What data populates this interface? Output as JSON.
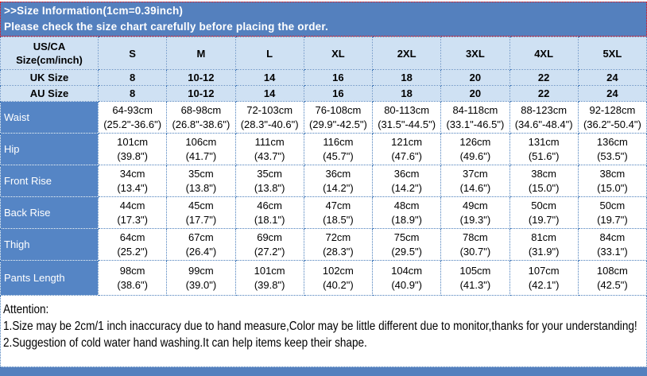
{
  "header": {
    "title": ">>Size Information(1cm=0.39inch)",
    "subtitle": "Please check the size chart carefully before placing the order."
  },
  "table": {
    "corner_label_line1": "US/CA",
    "corner_label_line2": "Size(cm/inch)",
    "sizes": [
      "S",
      "M",
      "L",
      "XL",
      "2XL",
      "3XL",
      "4XL",
      "5XL"
    ],
    "size_rows": [
      {
        "label": "UK Size",
        "values": [
          "8",
          "10-12",
          "14",
          "16",
          "18",
          "20",
          "22",
          "24"
        ]
      },
      {
        "label": "AU Size",
        "values": [
          "8",
          "10-12",
          "14",
          "16",
          "18",
          "20",
          "22",
          "24"
        ]
      }
    ],
    "measurement_rows": [
      {
        "label": "Waist",
        "cm": [
          "64-93cm",
          "68-98cm",
          "72-103cm",
          "76-108cm",
          "80-113cm",
          "84-118cm",
          "88-123cm",
          "92-128cm"
        ],
        "inch": [
          "(25.2\"-36.6\")",
          "(26.8\"-38.6\")",
          "(28.3\"-40.6\")",
          "(29.9\"-42.5\")",
          "(31.5\"-44.5\")",
          "(33.1\"-46.5\")",
          "(34.6\"-48.4\")",
          "(36.2\"-50.4\")"
        ]
      },
      {
        "label": "Hip",
        "cm": [
          "101cm",
          "106cm",
          "111cm",
          "116cm",
          "121cm",
          "126cm",
          "131cm",
          "136cm"
        ],
        "inch": [
          "(39.8\")",
          "(41.7\")",
          "(43.7\")",
          "(45.7\")",
          "(47.6\")",
          "(49.6\")",
          "(51.6\")",
          "(53.5\")"
        ]
      },
      {
        "label": "Front Rise",
        "cm": [
          "34cm",
          "35cm",
          "35cm",
          "36cm",
          "36cm",
          "37cm",
          "38cm",
          "38cm"
        ],
        "inch": [
          "(13.4\")",
          "(13.8\")",
          "(13.8\")",
          "(14.2\")",
          "(14.2\")",
          "(14.6\")",
          "(15.0\")",
          "(15.0\")"
        ]
      },
      {
        "label": "Back Rise",
        "cm": [
          "44cm",
          "45cm",
          "46cm",
          "47cm",
          "48cm",
          "49cm",
          "50cm",
          "50cm"
        ],
        "inch": [
          "(17.3\")",
          "(17.7\")",
          "(18.1\")",
          "(18.5\")",
          "(18.9\")",
          "(19.3\")",
          "(19.7\")",
          "(19.7\")"
        ]
      },
      {
        "label": "Thigh",
        "cm": [
          "64cm",
          "67cm",
          "69cm",
          "72cm",
          "75cm",
          "78cm",
          "81cm",
          "84cm"
        ],
        "inch": [
          "(25.2\")",
          "(26.4\")",
          "(27.2\")",
          "(28.3\")",
          "(29.5\")",
          "(30.7\")",
          "(31.9\")",
          "(33.1\")"
        ]
      },
      {
        "label": "Pants Length",
        "cm": [
          "98cm",
          "99cm",
          "101cm",
          "102cm",
          "104cm",
          "105cm",
          "107cm",
          "108cm"
        ],
        "inch": [
          "(38.6\")",
          "(39.0\")",
          "(39.8\")",
          "(40.2\")",
          "(40.9\")",
          "(41.3\")",
          "(42.1\")",
          "(42.5\")"
        ]
      }
    ]
  },
  "attention": {
    "title": "Attention:",
    "lines": [
      "1.Size may be 2cm/1 inch inaccuracy due to hand measure,Color may be little different due to monitor,thanks for your understanding!",
      "2.Suggestion of cold water hand washing.It can help items keep their shape."
    ]
  },
  "colors": {
    "header_bg": "#5480BE",
    "label_bg": "#5585C5",
    "light_row_bg": "#CFE1F3",
    "border_blue": "#4A7EBB",
    "border_red": "#FF0000",
    "text_white": "#FFFFFF",
    "text_black": "#000000"
  }
}
